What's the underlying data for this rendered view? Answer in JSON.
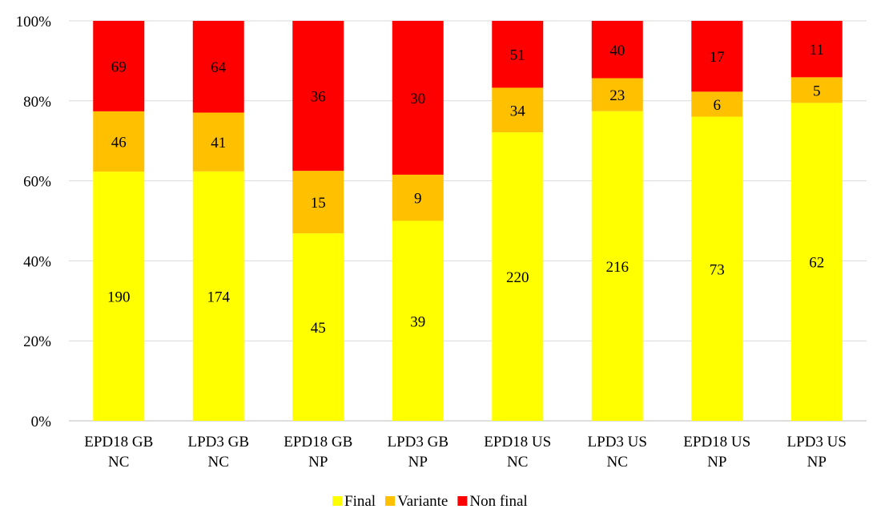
{
  "chart_data": {
    "type": "bar",
    "stacked": "percent",
    "categories": [
      [
        "EPD18 GB",
        "NC"
      ],
      [
        "LPD3 GB",
        "NC"
      ],
      [
        "EPD18 GB",
        "NP"
      ],
      [
        "LPD3 GB",
        "NP"
      ],
      [
        "EPD18 US",
        "NC"
      ],
      [
        "LPD3 US",
        "NC"
      ],
      [
        "EPD18 US",
        "NP"
      ],
      [
        "LPD3 US",
        "NP"
      ]
    ],
    "series": [
      {
        "name": "Final",
        "color": "#FFFF00",
        "values": [
          190,
          174,
          45,
          39,
          220,
          216,
          73,
          62
        ]
      },
      {
        "name": "Variante",
        "color": "#FFC000",
        "values": [
          46,
          41,
          15,
          9,
          34,
          23,
          6,
          5
        ]
      },
      {
        "name": "Non final",
        "color": "#FF0000",
        "values": [
          69,
          64,
          36,
          30,
          51,
          40,
          17,
          11
        ]
      }
    ],
    "ylim": [
      0,
      100
    ],
    "yticks": [
      "0%",
      "20%",
      "40%",
      "60%",
      "80%",
      "100%"
    ],
    "grid": true,
    "legend": "bottom"
  }
}
